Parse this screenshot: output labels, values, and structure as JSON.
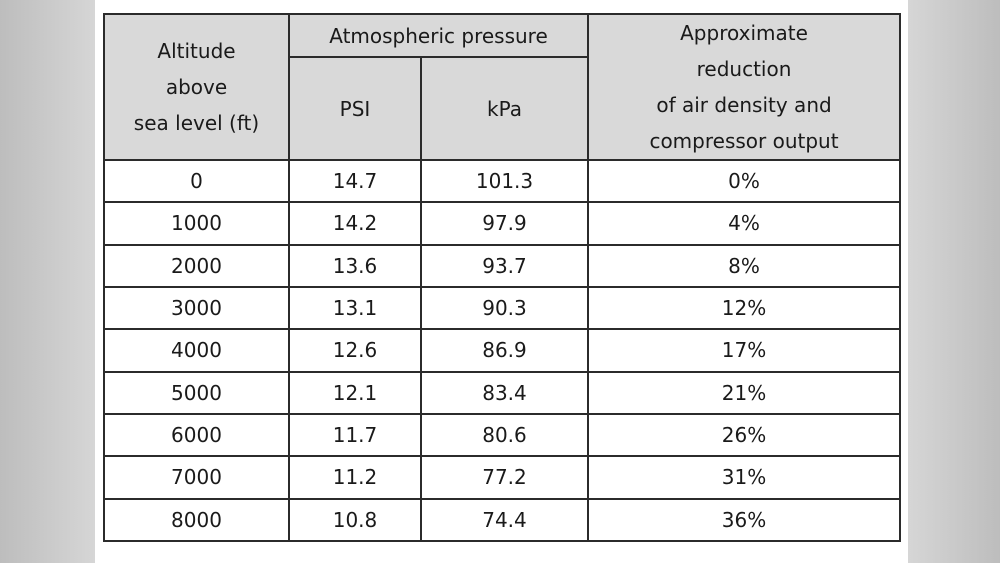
{
  "table": {
    "header": {
      "altitude": [
        "Altitude",
        "above",
        "sea level (ft)"
      ],
      "pressure": "Atmospheric pressure",
      "psi": "PSI",
      "kpa": "kPa",
      "reduction": [
        "Approximate",
        "reduction",
        "of air density and",
        "compressor output"
      ]
    },
    "rows": [
      [
        "0",
        "14.7",
        "101.3",
        "0%"
      ],
      [
        "1000",
        "14.2",
        "97.9",
        "4%"
      ],
      [
        "2000",
        "13.6",
        "93.7",
        "8%"
      ],
      [
        "3000",
        "13.1",
        "90.3",
        "12%"
      ],
      [
        "4000",
        "12.6",
        "86.9",
        "17%"
      ],
      [
        "5000",
        "12.1",
        "83.4",
        "21%"
      ],
      [
        "6000",
        "11.7",
        "80.6",
        "26%"
      ],
      [
        "7000",
        "11.2",
        "77.2",
        "31%"
      ],
      [
        "8000",
        "10.8",
        "74.4",
        "36%"
      ]
    ]
  }
}
